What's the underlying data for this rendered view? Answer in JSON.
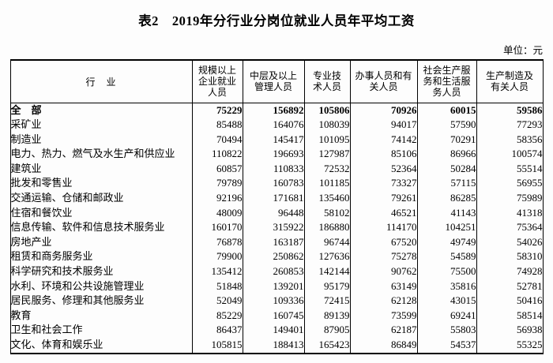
{
  "page": {
    "title": "表2　2019年分行业分岗位就业人员年平均工资",
    "unit_label": "单位：元"
  },
  "table": {
    "headers": [
      "行　业",
      "规模以上企业就业人员",
      "中层及以上管理人员",
      "专业技术人员",
      "办事人员和有关人员",
      "社会生产服务和生活服务人员",
      "生产制造及有关人员"
    ],
    "rows": [
      {
        "industry": "全　部",
        "bold": true,
        "values": [
          75229,
          156892,
          105806,
          70926,
          60015,
          59586
        ]
      },
      {
        "industry": "采矿业",
        "bold": false,
        "values": [
          85488,
          164076,
          108039,
          94017,
          57590,
          77293
        ]
      },
      {
        "industry": "制造业",
        "bold": false,
        "values": [
          70494,
          145417,
          101095,
          74142,
          70291,
          58356
        ]
      },
      {
        "industry": "电力、热力、燃气及水生产和供应业",
        "bold": false,
        "values": [
          110822,
          196693,
          127987,
          85106,
          86966,
          100574
        ]
      },
      {
        "industry": "建筑业",
        "bold": false,
        "values": [
          60857,
          110833,
          72532,
          52364,
          50284,
          55514
        ]
      },
      {
        "industry": "批发和零售业",
        "bold": false,
        "values": [
          79789,
          160783,
          101185,
          73327,
          57115,
          56955
        ]
      },
      {
        "industry": "交通运输、仓储和邮政业",
        "bold": false,
        "values": [
          92196,
          171681,
          135460,
          79261,
          86285,
          75989
        ]
      },
      {
        "industry": "住宿和餐饮业",
        "bold": false,
        "values": [
          48009,
          96448,
          58102,
          46521,
          41143,
          41318
        ]
      },
      {
        "industry": "信息传输、软件和信息技术服务业",
        "bold": false,
        "values": [
          160170,
          315922,
          186880,
          114170,
          104251,
          75364
        ]
      },
      {
        "industry": "房地产业",
        "bold": false,
        "values": [
          76878,
          163187,
          96744,
          67520,
          49749,
          54026
        ]
      },
      {
        "industry": "租赁和商务服务业",
        "bold": false,
        "values": [
          79900,
          250862,
          127636,
          75278,
          54589,
          58310
        ]
      },
      {
        "industry": "科学研究和技术服务业",
        "bold": false,
        "values": [
          135412,
          260853,
          142144,
          90762,
          75500,
          74928
        ]
      },
      {
        "industry": "水利、环境和公共设施管理业",
        "bold": false,
        "values": [
          51848,
          139201,
          95179,
          63149,
          35816,
          52781
        ]
      },
      {
        "industry": "居民服务、修理和其他服务业",
        "bold": false,
        "values": [
          52049,
          109336,
          72415,
          62128,
          43015,
          50416
        ]
      },
      {
        "industry": "教育",
        "bold": false,
        "values": [
          85229,
          160745,
          89139,
          73599,
          69241,
          58514
        ]
      },
      {
        "industry": "卫生和社会工作",
        "bold": false,
        "values": [
          86437,
          149401,
          87905,
          62187,
          55803,
          56938
        ]
      },
      {
        "industry": "文化、体育和娱乐业",
        "bold": false,
        "values": [
          105815,
          188413,
          165423,
          86849,
          54537,
          55325
        ]
      }
    ]
  }
}
